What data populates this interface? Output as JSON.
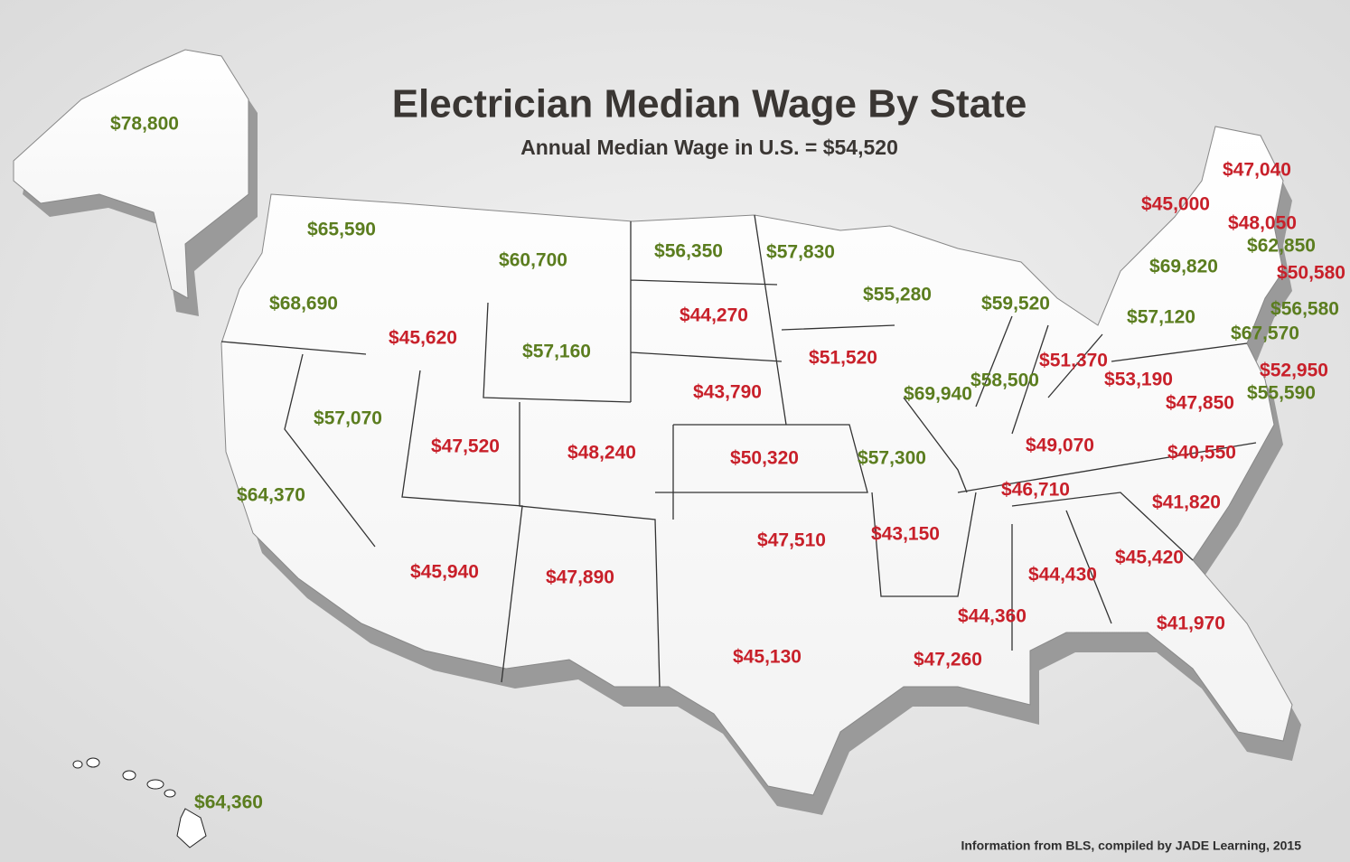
{
  "header": {
    "title": "Electrician Median Wage By State",
    "subtitle": "Annual Median Wage in U.S. = $54,520"
  },
  "labels": [
    {
      "text": "$78,800",
      "color": "#5b7d1f"
    },
    {
      "text": "$65,590",
      "color": "#5b7d1f"
    },
    {
      "text": "$60,700",
      "color": "#5b7d1f"
    },
    {
      "text": "$56,350",
      "color": "#5b7d1f"
    },
    {
      "text": "$57,830",
      "color": "#5b7d1f"
    },
    {
      "text": "$68,690",
      "color": "#5b7d1f"
    },
    {
      "text": "$45,620",
      "color": "#c8202a"
    },
    {
      "text": "$57,160",
      "color": "#5b7d1f"
    },
    {
      "text": "$44,270",
      "color": "#c8202a"
    },
    {
      "text": "$55,280",
      "color": "#5b7d1f"
    },
    {
      "text": "$59,520",
      "color": "#5b7d1f"
    },
    {
      "text": "$57,070",
      "color": "#5b7d1f"
    },
    {
      "text": "$47,520",
      "color": "#c8202a"
    },
    {
      "text": "$48,240",
      "color": "#c8202a"
    },
    {
      "text": "$43,790",
      "color": "#c8202a"
    },
    {
      "text": "$51,520",
      "color": "#c8202a"
    },
    {
      "text": "$69,940",
      "color": "#5b7d1f"
    },
    {
      "text": "$58,500",
      "color": "#5b7d1f"
    },
    {
      "text": "$51,370",
      "color": "#c8202a"
    },
    {
      "text": "$53,190",
      "color": "#c8202a"
    },
    {
      "text": "$64,370",
      "color": "#5b7d1f"
    },
    {
      "text": "$50,320",
      "color": "#c8202a"
    },
    {
      "text": "$57,300",
      "color": "#5b7d1f"
    },
    {
      "text": "$49,070",
      "color": "#c8202a"
    },
    {
      "text": "$47,850",
      "color": "#c8202a"
    },
    {
      "text": "$40,550",
      "color": "#c8202a"
    },
    {
      "text": "$46,710",
      "color": "#c8202a"
    },
    {
      "text": "$41,820",
      "color": "#c8202a"
    },
    {
      "text": "$45,940",
      "color": "#c8202a"
    },
    {
      "text": "$47,890",
      "color": "#c8202a"
    },
    {
      "text": "$47,510",
      "color": "#c8202a"
    },
    {
      "text": "$43,150",
      "color": "#c8202a"
    },
    {
      "text": "$44,360",
      "color": "#c8202a"
    },
    {
      "text": "$44,430",
      "color": "#c8202a"
    },
    {
      "text": "$45,420",
      "color": "#c8202a"
    },
    {
      "text": "$45,130",
      "color": "#c8202a"
    },
    {
      "text": "$47,260",
      "color": "#c8202a"
    },
    {
      "text": "$41,970",
      "color": "#c8202a"
    },
    {
      "text": "$57,120",
      "color": "#5b7d1f"
    },
    {
      "text": "$69,820",
      "color": "#5b7d1f"
    },
    {
      "text": "$45,000",
      "color": "#c8202a"
    },
    {
      "text": "$47,040",
      "color": "#c8202a"
    },
    {
      "text": "$48,050",
      "color": "#c8202a"
    },
    {
      "text": "$62,850",
      "color": "#5b7d1f"
    },
    {
      "text": "$50,580",
      "color": "#c8202a"
    },
    {
      "text": "$56,580",
      "color": "#5b7d1f"
    },
    {
      "text": "$67,570",
      "color": "#5b7d1f"
    },
    {
      "text": "$52,950",
      "color": "#c8202a"
    },
    {
      "text": "$55,590",
      "color": "#5b7d1f"
    },
    {
      "text": "$64,360",
      "color": "#5b7d1f"
    }
  ],
  "footer": {
    "source": "Information from BLS, compiled by JADE Learning, 2015"
  }
}
